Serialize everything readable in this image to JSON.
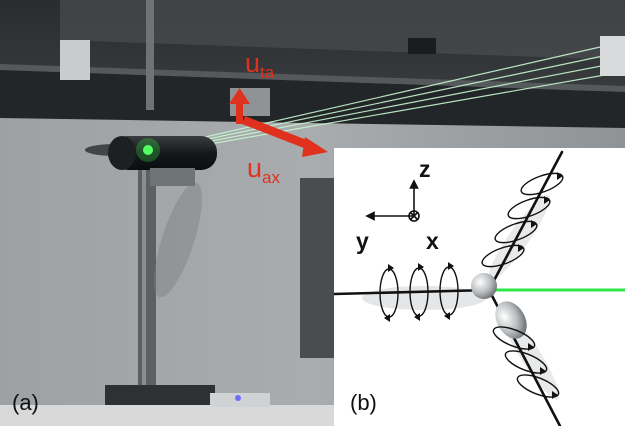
{
  "figure": {
    "panel_a_label": "(a)",
    "panel_b_label": "(b)"
  },
  "photo": {
    "arrow_ta_label": "u",
    "arrow_ta_sub": "ta",
    "arrow_ax_label": "u",
    "arrow_ax_sub": "ax"
  },
  "schematic": {
    "axis_z": "z",
    "axis_y": "y",
    "axis_x": "x"
  },
  "colors": {
    "arrow_red": "#e0301e",
    "laser_green": "#2ee84a",
    "blade_black": "#111111"
  }
}
